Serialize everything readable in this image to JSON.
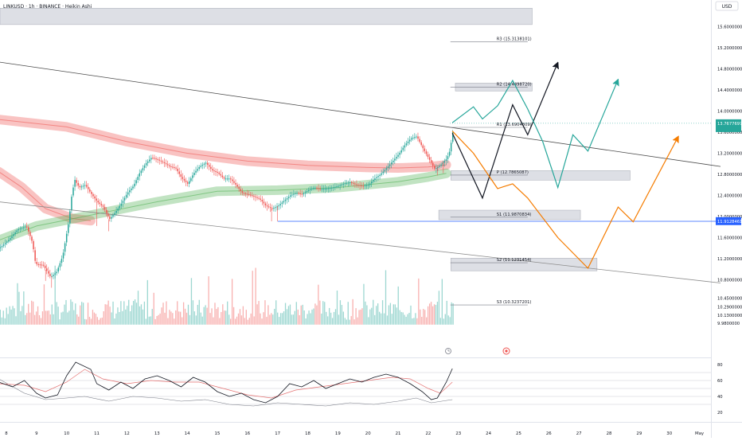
{
  "header": {
    "symbol_line": "LINKUSD · 1h · BINANCE · Heikin Ashi",
    "currency": "USD"
  },
  "chart_data": [
    {
      "type": "line",
      "chart_style": "heikin-ashi candlesticks with volume, moving-average ribbons, pivot levels and projected paths",
      "y_scale": "linear",
      "grid": false,
      "legend": "none",
      "ylim": [
        9.92,
        15.88
      ],
      "x_ticks": [
        "8",
        "9",
        "10",
        "11",
        "12",
        "13",
        "14",
        "15",
        "16",
        "17",
        "18",
        "19",
        "20",
        "21",
        "22",
        "23",
        "24",
        "25",
        "26",
        "27",
        "28",
        "29",
        "30",
        "May"
      ],
      "y_ticks": [
        15.6,
        15.2,
        14.8,
        14.4,
        14.0,
        13.6,
        13.2,
        12.8,
        12.4,
        12.0,
        11.6,
        11.2,
        10.8,
        10.45,
        10.29,
        10.13,
        9.98
      ],
      "y_tick_labels": [
        "15.6000000",
        "15.2000000",
        "14.8000000",
        "14.4000000",
        "14.0000000",
        "13.6000000",
        "13.2000000",
        "12.8000000",
        "12.4000000",
        "12.0000000",
        "11.6000000",
        "11.2000000",
        "10.8000000",
        "10.4500000",
        "10.2900000",
        "10.1300000",
        "9.9800000"
      ],
      "pivot_levels": [
        {
          "label": "R3 (15.3138101)",
          "value": 15.3138101,
          "x_start": 23.0,
          "x_end": 25.3
        },
        {
          "label": "R2 (14.4498720)",
          "value": 14.449872,
          "x_start": 23.0,
          "x_end": 25.3
        },
        {
          "label": "R1 (13.6904809)",
          "value": 13.6904809,
          "x_start": 23.0,
          "x_end": 25.3
        },
        {
          "label": "P (12.7865087)",
          "value": 12.7865087,
          "x_start": 23.0,
          "x_end": 25.3
        },
        {
          "label": "S1 (11.9870834)",
          "value": 11.9870834,
          "x_start": 23.0,
          "x_end": 25.3
        },
        {
          "label": "S2 (11.1231454)",
          "value": 11.1231454,
          "x_start": 23.0,
          "x_end": 25.3
        },
        {
          "label": "S3 (10.3237201)",
          "value": 10.3237201,
          "x_start": 23.0,
          "x_end": 25.3
        }
      ],
      "zones": [
        {
          "x_start": 7.75,
          "x_end": 25.45,
          "y_low": 15.64,
          "y_high": 15.95
        },
        {
          "x_start": 22.9,
          "x_end": 25.45,
          "y_low": 14.38,
          "y_high": 14.53
        },
        {
          "x_start": 22.75,
          "x_end": 28.7,
          "y_low": 12.69,
          "y_high": 12.87
        },
        {
          "x_start": 22.35,
          "x_end": 27.05,
          "y_low": 11.94,
          "y_high": 12.12
        },
        {
          "x_start": 22.75,
          "x_end": 27.6,
          "y_low": 10.97,
          "y_high": 11.21
        }
      ],
      "current_price_label": "13.7677697",
      "current_price_value": 13.7677697,
      "current_price_color": "#26a69a",
      "level_label": "11.9128461",
      "level_value": 11.9128461,
      "level_label_color": "#2962ff",
      "trendlines": [
        {
          "points": [
            [
              7.75,
              14.93
            ],
            [
              31.7,
              12.95
            ]
          ],
          "color": "#4a4a4a"
        },
        {
          "points": [
            [
              7.75,
              12.28
            ],
            [
              31.7,
              10.74
            ]
          ],
          "color": "#8c8c8c"
        },
        {
          "points": [
            [
              17.0,
              11.91
            ],
            [
              31.7,
              11.91
            ]
          ],
          "color": "#2962ff"
        }
      ],
      "projections": [
        {
          "color": "#131722",
          "arrow": true,
          "points": [
            [
              22.8,
              13.58
            ],
            [
              23.8,
              12.35
            ],
            [
              24.8,
              14.12
            ],
            [
              25.3,
              13.55
            ],
            [
              26.3,
              14.92
            ]
          ]
        },
        {
          "color": "#26a69a",
          "arrow": true,
          "points": [
            [
              22.8,
              13.78
            ],
            [
              23.5,
              14.08
            ],
            [
              23.8,
              13.85
            ],
            [
              24.3,
              14.1
            ],
            [
              24.8,
              14.58
            ],
            [
              25.3,
              14.04
            ],
            [
              25.8,
              13.42
            ],
            [
              26.3,
              12.55
            ],
            [
              26.8,
              13.55
            ],
            [
              27.3,
              13.24
            ],
            [
              28.3,
              14.6
            ]
          ]
        },
        {
          "color": "#f57c00",
          "arrow": true,
          "points": [
            [
              22.8,
              13.62
            ],
            [
              23.5,
              13.2
            ],
            [
              24.3,
              12.53
            ],
            [
              24.8,
              12.62
            ],
            [
              25.3,
              12.35
            ],
            [
              26.3,
              11.6
            ],
            [
              27.3,
              11.02
            ],
            [
              28.3,
              12.18
            ],
            [
              28.8,
              11.9
            ],
            [
              30.3,
              13.52
            ]
          ]
        }
      ],
      "ribbons": [
        {
          "color": "#ef5350",
          "points": [
            [
              7.75,
              13.84
            ],
            [
              10,
              13.7
            ],
            [
              12,
              13.42
            ],
            [
              14,
              13.2
            ],
            [
              16,
              13.05
            ],
            [
              18,
              12.97
            ],
            [
              20,
              12.93
            ],
            [
              21,
              12.92
            ],
            [
              22,
              12.94
            ],
            [
              22.6,
              12.98
            ]
          ]
        },
        {
          "color": "#ef5350",
          "points": [
            [
              7.75,
              12.85
            ],
            [
              8.5,
              12.56
            ],
            [
              9.3,
              12.15
            ],
            [
              10.2,
              11.96
            ],
            [
              10.8,
              11.92
            ]
          ]
        },
        {
          "color": "#4caf50",
          "points": [
            [
              7.75,
              11.55
            ],
            [
              9,
              11.82
            ],
            [
              11,
              12.05
            ],
            [
              13,
              12.28
            ],
            [
              15,
              12.48
            ],
            [
              17,
              12.5
            ],
            [
              19,
              12.55
            ],
            [
              21,
              12.66
            ],
            [
              22,
              12.75
            ],
            [
              22.6,
              12.82
            ]
          ]
        }
      ],
      "candle_path": [
        [
          7.75,
          11.4
        ],
        [
          8.05,
          11.55
        ],
        [
          8.35,
          11.75
        ],
        [
          8.65,
          11.82
        ],
        [
          8.85,
          11.5
        ],
        [
          8.95,
          11.1
        ],
        [
          9.2,
          11.08
        ],
        [
          9.45,
          10.85
        ],
        [
          9.65,
          10.95
        ],
        [
          9.85,
          11.25
        ],
        [
          10.05,
          11.9
        ],
        [
          10.15,
          12.4
        ],
        [
          10.25,
          12.7
        ],
        [
          10.4,
          12.55
        ],
        [
          10.6,
          12.6
        ],
        [
          10.8,
          12.43
        ],
        [
          11.0,
          12.28
        ],
        [
          11.2,
          12.18
        ],
        [
          11.4,
          11.95
        ],
        [
          11.6,
          12.08
        ],
        [
          11.8,
          12.25
        ],
        [
          12.0,
          12.45
        ],
        [
          12.2,
          12.58
        ],
        [
          12.4,
          12.82
        ],
        [
          12.6,
          13.0
        ],
        [
          12.8,
          13.12
        ],
        [
          13.0,
          13.08
        ],
        [
          13.2,
          13.02
        ],
        [
          13.4,
          12.95
        ],
        [
          13.6,
          12.92
        ],
        [
          13.8,
          12.73
        ],
        [
          14.0,
          12.62
        ],
        [
          14.2,
          12.82
        ],
        [
          14.4,
          12.95
        ],
        [
          14.6,
          13.02
        ],
        [
          14.8,
          12.88
        ],
        [
          15.0,
          12.83
        ],
        [
          15.2,
          12.72
        ],
        [
          15.4,
          12.72
        ],
        [
          15.6,
          12.6
        ],
        [
          15.8,
          12.45
        ],
        [
          16.0,
          12.42
        ],
        [
          16.2,
          12.38
        ],
        [
          16.4,
          12.33
        ],
        [
          16.6,
          12.2
        ],
        [
          16.8,
          12.15
        ],
        [
          17.0,
          12.2
        ],
        [
          17.2,
          12.3
        ],
        [
          17.4,
          12.4
        ],
        [
          17.6,
          12.45
        ],
        [
          17.8,
          12.42
        ],
        [
          18.0,
          12.5
        ],
        [
          18.2,
          12.55
        ],
        [
          18.4,
          12.52
        ],
        [
          18.6,
          12.53
        ],
        [
          18.8,
          12.55
        ],
        [
          19.0,
          12.58
        ],
        [
          19.2,
          12.63
        ],
        [
          19.4,
          12.65
        ],
        [
          19.6,
          12.6
        ],
        [
          19.8,
          12.58
        ],
        [
          20.0,
          12.6
        ],
        [
          20.2,
          12.72
        ],
        [
          20.4,
          12.8
        ],
        [
          20.6,
          12.92
        ],
        [
          20.8,
          13.05
        ],
        [
          21.0,
          13.18
        ],
        [
          21.2,
          13.35
        ],
        [
          21.4,
          13.48
        ],
        [
          21.6,
          13.52
        ],
        [
          21.8,
          13.3
        ],
        [
          22.0,
          13.1
        ],
        [
          22.2,
          12.9
        ],
        [
          22.4,
          12.98
        ],
        [
          22.6,
          13.1
        ],
        [
          22.7,
          13.25
        ],
        [
          22.8,
          13.62
        ]
      ],
      "candle_low_spikes": [
        [
          9.3,
          10.78
        ],
        [
          9.5,
          10.65
        ],
        [
          11.0,
          11.82
        ],
        [
          11.4,
          11.72
        ],
        [
          16.8,
          11.91
        ],
        [
          17.0,
          11.91
        ],
        [
          22.3,
          12.78
        ],
        [
          22.5,
          12.82
        ]
      ],
      "volume_panel": {
        "baseline_value": 9.95,
        "max_value": 10.58,
        "up_color": "#26a69a",
        "down_color": "#ef5350"
      },
      "rsi_panel": {
        "ticks": [
          80,
          60,
          40,
          20
        ],
        "levels": [
          70,
          60,
          50,
          40,
          30
        ],
        "rsi": [
          [
            7.75,
            58
          ],
          [
            8.2,
            52
          ],
          [
            8.6,
            60
          ],
          [
            9.0,
            44
          ],
          [
            9.3,
            38
          ],
          [
            9.7,
            42
          ],
          [
            10.0,
            66
          ],
          [
            10.3,
            83
          ],
          [
            10.8,
            74
          ],
          [
            11.0,
            56
          ],
          [
            11.4,
            48
          ],
          [
            11.8,
            58
          ],
          [
            12.2,
            50
          ],
          [
            12.6,
            62
          ],
          [
            13.0,
            66
          ],
          [
            13.4,
            60
          ],
          [
            13.8,
            52
          ],
          [
            14.2,
            64
          ],
          [
            14.6,
            58
          ],
          [
            15.0,
            46
          ],
          [
            15.4,
            40
          ],
          [
            15.8,
            44
          ],
          [
            16.2,
            36
          ],
          [
            16.6,
            32
          ],
          [
            17.0,
            40
          ],
          [
            17.4,
            56
          ],
          [
            17.8,
            52
          ],
          [
            18.2,
            60
          ],
          [
            18.6,
            50
          ],
          [
            19.0,
            56
          ],
          [
            19.4,
            62
          ],
          [
            19.8,
            58
          ],
          [
            20.2,
            64
          ],
          [
            20.6,
            68
          ],
          [
            21.0,
            64
          ],
          [
            21.4,
            56
          ],
          [
            21.8,
            46
          ],
          [
            22.1,
            36
          ],
          [
            22.3,
            38
          ],
          [
            22.6,
            58
          ],
          [
            22.8,
            75
          ]
        ],
        "rsi_ma": [
          [
            7.75,
            56
          ],
          [
            8.6,
            54
          ],
          [
            9.3,
            46
          ],
          [
            10.0,
            58
          ],
          [
            10.6,
            74
          ],
          [
            11.2,
            62
          ],
          [
            12.0,
            56
          ],
          [
            12.8,
            60
          ],
          [
            13.6,
            58
          ],
          [
            14.4,
            58
          ],
          [
            15.2,
            50
          ],
          [
            16.0,
            42
          ],
          [
            16.8,
            38
          ],
          [
            17.6,
            48
          ],
          [
            18.4,
            52
          ],
          [
            19.2,
            56
          ],
          [
            20.0,
            60
          ],
          [
            20.8,
            64
          ],
          [
            21.4,
            62
          ],
          [
            22.0,
            50
          ],
          [
            22.4,
            44
          ],
          [
            22.8,
            58
          ]
        ],
        "trend_line": [
          [
            7.75,
            62
          ],
          [
            8.6,
            44
          ],
          [
            9.3,
            36
          ],
          [
            10.0,
            38
          ],
          [
            10.6,
            40
          ],
          [
            11.4,
            34
          ],
          [
            12.2,
            40
          ],
          [
            13.0,
            38
          ],
          [
            13.8,
            34
          ],
          [
            14.6,
            36
          ],
          [
            15.4,
            30
          ],
          [
            16.2,
            28
          ],
          [
            17.0,
            32
          ],
          [
            17.8,
            30
          ],
          [
            18.6,
            28
          ],
          [
            19.4,
            32
          ],
          [
            20.2,
            30
          ],
          [
            21.0,
            34
          ],
          [
            21.6,
            38
          ],
          [
            22.1,
            32
          ],
          [
            22.8,
            36
          ]
        ]
      }
    }
  ]
}
